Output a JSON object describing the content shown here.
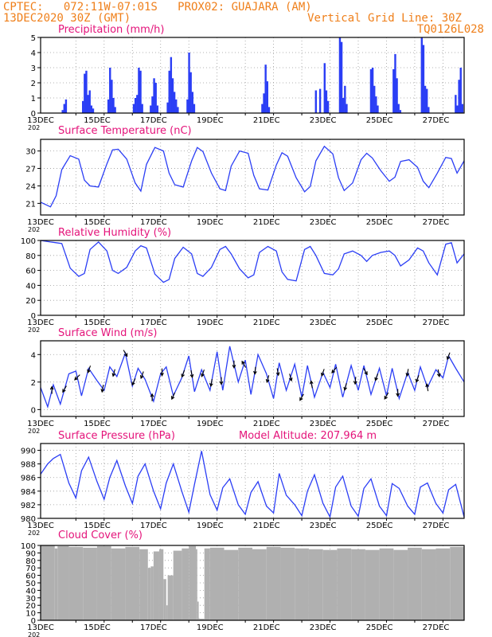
{
  "header": {
    "line1": "CPTEC:   072:11W-07:01S   PROX02: GUAJARA (AM)",
    "line2_left": "13DEC2020 30Z (GMT)",
    "line2_right": "Vertical Grid Line: 30Z",
    "line3_right": "TQ0126L028"
  },
  "colors": {
    "header": "#ef7f1a",
    "title": "#e4137a",
    "series": "#2b3ef5",
    "cloud": "#b0b0b0",
    "grid": "#9a9a9a"
  },
  "x_ticks": [
    "13DEC",
    "15DEC",
    "17DEC",
    "19DEC",
    "21DEC",
    "23DEC",
    "25DEC",
    "27DEC"
  ],
  "x_year_stub": "202",
  "chart_data": [
    {
      "id": "precipitation",
      "type": "bar",
      "title": "Precipitation (mm/h)",
      "ylim": [
        0,
        5
      ],
      "yticks": [
        0,
        1,
        2,
        3,
        4,
        5
      ],
      "x_range_days": [
        13.0,
        28.0
      ],
      "x": [
        13.78,
        13.84,
        13.9,
        14.5,
        14.56,
        14.62,
        14.68,
        14.74,
        14.8,
        14.86,
        15.4,
        15.46,
        15.52,
        15.58,
        15.64,
        16.3,
        16.36,
        16.42,
        16.48,
        16.54,
        16.6,
        16.9,
        16.96,
        17.02,
        17.08,
        17.14,
        17.5,
        17.56,
        17.62,
        17.68,
        17.74,
        17.8,
        17.86,
        18.2,
        18.26,
        18.32,
        18.38,
        18.44,
        20.85,
        20.91,
        20.97,
        21.03,
        21.09,
        22.75,
        22.9,
        23.06,
        23.12,
        23.18,
        23.6,
        23.66,
        23.72,
        23.78,
        23.84,
        24.7,
        24.76,
        24.82,
        24.88,
        24.94,
        25.5,
        25.56,
        25.62,
        25.68,
        25.74,
        26.5,
        26.56,
        26.62,
        26.68,
        26.74,
        27.7,
        27.76,
        27.82,
        27.88,
        27.94
      ],
      "values": [
        0.2,
        0.6,
        0.9,
        0.8,
        2.6,
        2.8,
        1.2,
        1.5,
        0.5,
        0.3,
        0.9,
        3.0,
        2.2,
        1.0,
        0.4,
        0.6,
        1.0,
        1.2,
        3.0,
        2.8,
        0.6,
        0.5,
        1.1,
        2.3,
        2.0,
        0.5,
        0.7,
        2.8,
        3.7,
        2.3,
        1.4,
        0.9,
        0.4,
        0.9,
        4.0,
        2.7,
        1.4,
        0.6,
        0.6,
        1.3,
        3.2,
        2.1,
        0.4,
        1.5,
        1.6,
        3.3,
        1.5,
        0.8,
        5.0,
        4.7,
        1.0,
        1.8,
        0.6,
        2.9,
        3.0,
        1.8,
        1.1,
        0.5,
        2.9,
        3.9,
        2.3,
        0.6,
        0.2,
        5.0,
        4.5,
        1.8,
        1.6,
        0.4,
        1.2,
        0.5,
        2.2,
        3.0,
        0.6
      ]
    },
    {
      "id": "temperature",
      "type": "line",
      "title": "Surface Temperature (nC)",
      "ylim": [
        19,
        32
      ],
      "yticks": [
        21,
        24,
        27,
        30
      ],
      "x_range_days": [
        13.0,
        28.0
      ],
      "x": [
        13.0,
        13.35,
        13.55,
        13.75,
        14.05,
        14.35,
        14.55,
        14.75,
        15.05,
        15.35,
        15.55,
        15.75,
        16.05,
        16.35,
        16.55,
        16.75,
        17.05,
        17.35,
        17.55,
        17.75,
        18.05,
        18.35,
        18.55,
        18.75,
        19.05,
        19.35,
        19.55,
        19.75,
        20.05,
        20.35,
        20.55,
        20.75,
        21.05,
        21.35,
        21.55,
        21.75,
        22.05,
        22.35,
        22.55,
        22.75,
        23.05,
        23.35,
        23.55,
        23.75,
        24.05,
        24.35,
        24.55,
        24.75,
        25.05,
        25.35,
        25.55,
        25.75,
        26.05,
        26.35,
        26.55,
        26.75,
        27.05,
        27.35,
        27.55,
        27.75,
        28.0
      ],
      "values": [
        21.2,
        20.4,
        22.3,
        26.8,
        29.2,
        28.6,
        25.0,
        24.0,
        23.8,
        27.8,
        30.2,
        30.3,
        28.6,
        24.5,
        23.1,
        27.7,
        30.6,
        30.0,
        26.2,
        24.2,
        23.8,
        28.3,
        30.6,
        29.9,
        26.2,
        23.5,
        23.2,
        27.4,
        30.0,
        29.6,
        25.8,
        23.5,
        23.3,
        27.6,
        29.7,
        29.1,
        25.4,
        23.0,
        23.9,
        28.3,
        30.8,
        29.5,
        25.4,
        23.2,
        24.5,
        28.5,
        29.6,
        28.8,
        26.6,
        24.8,
        25.5,
        28.2,
        28.5,
        27.2,
        24.8,
        23.7,
        26.2,
        28.9,
        28.7,
        26.2,
        28.3
      ]
    },
    {
      "id": "humidity",
      "type": "line",
      "title": "Relative Humidity (%)",
      "ylim": [
        0,
        100
      ],
      "yticks": [
        0,
        20,
        40,
        60,
        80,
        100
      ],
      "x_range_days": [
        13.0,
        28.0
      ],
      "x": [
        13.0,
        13.35,
        13.55,
        13.75,
        14.05,
        14.35,
        14.55,
        14.75,
        15.05,
        15.35,
        15.55,
        15.75,
        16.05,
        16.35,
        16.55,
        16.75,
        17.05,
        17.35,
        17.55,
        17.75,
        18.05,
        18.35,
        18.55,
        18.75,
        19.05,
        19.35,
        19.55,
        19.75,
        20.05,
        20.35,
        20.55,
        20.75,
        21.05,
        21.35,
        21.55,
        21.75,
        22.05,
        22.35,
        22.55,
        22.75,
        23.05,
        23.35,
        23.55,
        23.75,
        24.05,
        24.35,
        24.55,
        24.75,
        25.05,
        25.35,
        25.55,
        25.75,
        26.05,
        26.35,
        26.55,
        26.75,
        27.05,
        27.35,
        27.55,
        27.75,
        28.0
      ],
      "values": [
        100,
        98,
        97,
        96,
        63,
        52,
        56,
        88,
        98,
        86,
        60,
        56,
        64,
        86,
        93,
        90,
        55,
        44,
        48,
        76,
        91,
        82,
        56,
        52,
        64,
        88,
        92,
        82,
        62,
        50,
        54,
        84,
        92,
        86,
        58,
        48,
        46,
        88,
        92,
        80,
        56,
        54,
        62,
        82,
        86,
        80,
        72,
        80,
        84,
        86,
        80,
        66,
        74,
        90,
        86,
        70,
        54,
        95,
        97,
        70,
        82
      ]
    },
    {
      "id": "wind",
      "type": "line",
      "title": "Surface Wind (m/s)",
      "ylim": [
        -0.5,
        5
      ],
      "yticks": [
        0,
        2,
        4
      ],
      "x_range_days": [
        13.0,
        28.0
      ],
      "x": [
        13.0,
        13.25,
        13.45,
        13.7,
        14.0,
        14.25,
        14.45,
        14.7,
        15.0,
        15.25,
        15.45,
        15.7,
        16.0,
        16.25,
        16.45,
        16.7,
        17.0,
        17.25,
        17.45,
        17.7,
        18.0,
        18.25,
        18.45,
        18.7,
        19.0,
        19.25,
        19.45,
        19.7,
        20.0,
        20.25,
        20.45,
        20.7,
        21.0,
        21.25,
        21.45,
        21.7,
        22.0,
        22.25,
        22.45,
        22.7,
        23.0,
        23.25,
        23.45,
        23.7,
        24.0,
        24.25,
        24.45,
        24.7,
        25.0,
        25.25,
        25.45,
        25.7,
        26.0,
        26.25,
        26.45,
        26.7,
        27.0,
        27.25,
        27.45,
        27.7,
        28.0
      ],
      "values": [
        1.6,
        0.2,
        1.8,
        0.4,
        2.6,
        2.8,
        1.0,
        3.0,
        2.1,
        1.4,
        3.1,
        2.4,
        4.1,
        1.7,
        3.0,
        2.2,
        0.6,
        2.6,
        3.1,
        1.0,
        2.3,
        3.9,
        1.3,
        2.9,
        1.4,
        4.2,
        1.4,
        4.6,
        2.0,
        3.6,
        1.1,
        4.0,
        2.6,
        0.8,
        3.4,
        1.4,
        3.3,
        0.9,
        3.2,
        0.9,
        2.7,
        1.6,
        3.3,
        0.9,
        3.2,
        1.4,
        3.2,
        1.1,
        3.0,
        1.0,
        3.0,
        0.8,
        2.7,
        1.4,
        3.1,
        1.6,
        2.9,
        2.3,
        3.9,
        3.0,
        2.0
      ],
      "arrows_x": [
        13.4,
        13.85,
        14.3,
        14.72,
        15.2,
        15.6,
        16.0,
        16.3,
        16.6,
        16.95,
        17.3,
        17.7,
        18.05,
        18.35,
        18.75,
        19.05,
        19.4,
        19.85,
        20.2,
        20.6,
        21.05,
        21.4,
        21.85,
        22.25,
        22.6,
        23.0,
        23.4,
        23.8,
        24.15,
        24.5,
        24.9,
        25.25,
        25.65,
        26.0,
        26.35,
        26.7,
        27.1,
        27.45
      ],
      "arrows_dir_deg": [
        90,
        240,
        225,
        250,
        260,
        255,
        300,
        245,
        250,
        90,
        270,
        245,
        250,
        280,
        250,
        260,
        270,
        270,
        120,
        265,
        255,
        280,
        285,
        240,
        100,
        250,
        230,
        255,
        265,
        300,
        250,
        240,
        270,
        260,
        250,
        100,
        280,
        250
      ]
    },
    {
      "id": "pressure",
      "type": "line",
      "title": "Surface Pressure (hPa)",
      "extra_label": "Model Altitude: 207.964 m",
      "ylim": [
        980,
        991
      ],
      "yticks": [
        980,
        982,
        984,
        986,
        988,
        990
      ],
      "x_range_days": [
        13.0,
        28.0
      ],
      "x": [
        13.0,
        13.25,
        13.45,
        13.7,
        14.0,
        14.25,
        14.45,
        14.7,
        15.0,
        15.25,
        15.45,
        15.7,
        16.0,
        16.25,
        16.45,
        16.7,
        17.0,
        17.25,
        17.45,
        17.7,
        18.0,
        18.25,
        18.45,
        18.7,
        19.0,
        19.25,
        19.45,
        19.7,
        20.0,
        20.25,
        20.45,
        20.7,
        21.0,
        21.25,
        21.45,
        21.7,
        22.0,
        22.25,
        22.45,
        22.7,
        23.0,
        23.25,
        23.45,
        23.7,
        24.0,
        24.25,
        24.45,
        24.7,
        25.0,
        25.25,
        25.45,
        25.7,
        26.0,
        26.25,
        26.45,
        26.7,
        27.0,
        27.25,
        27.45,
        27.7,
        28.0
      ],
      "values": [
        986.5,
        988.0,
        988.8,
        989.4,
        985.2,
        983.0,
        987.0,
        989.0,
        985.4,
        982.8,
        986.0,
        988.5,
        984.8,
        982.2,
        986.2,
        988.0,
        984.0,
        981.4,
        985.2,
        988.0,
        984.0,
        980.9,
        985.0,
        989.9,
        983.5,
        981.2,
        984.5,
        985.8,
        982.0,
        980.6,
        983.8,
        985.4,
        981.8,
        980.8,
        986.6,
        983.4,
        982.0,
        980.4,
        984.0,
        986.4,
        982.2,
        980.2,
        984.6,
        986.2,
        981.8,
        980.3,
        984.4,
        985.8,
        981.8,
        980.4,
        985.1,
        984.4,
        981.8,
        980.6,
        984.6,
        985.2,
        982.2,
        980.8,
        984.2,
        985.0,
        980.2
      ]
    },
    {
      "id": "cloud",
      "type": "bar",
      "title": "Cloud Cover (%)",
      "ylim": [
        0,
        100
      ],
      "yticks": [
        0,
        10,
        20,
        30,
        40,
        50,
        60,
        70,
        80,
        90,
        100
      ],
      "x_range_days": [
        13.0,
        28.0
      ],
      "x": [
        13.0,
        13.5,
        13.6,
        14.0,
        14.5,
        15.0,
        15.5,
        16.0,
        16.5,
        16.8,
        16.9,
        17.0,
        17.2,
        17.35,
        17.45,
        17.5,
        17.7,
        18.0,
        18.25,
        18.5,
        18.55,
        18.6,
        18.62,
        18.8,
        19.0,
        19.5,
        20.0,
        20.5,
        21.0,
        21.5,
        22.0,
        22.5,
        23.0,
        23.5,
        24.0,
        24.5,
        25.0,
        25.5,
        26.0,
        26.5,
        27.0,
        27.5,
        28.0
      ],
      "values": [
        100,
        96,
        99,
        98,
        97,
        99,
        96,
        98,
        95,
        70,
        72,
        92,
        95,
        55,
        20,
        60,
        93,
        96,
        99,
        95,
        25,
        3,
        2,
        96,
        97,
        94,
        97,
        95,
        98,
        97,
        96,
        95,
        94,
        96,
        95,
        94,
        96,
        94,
        97,
        95,
        96,
        98,
        94
      ]
    }
  ]
}
